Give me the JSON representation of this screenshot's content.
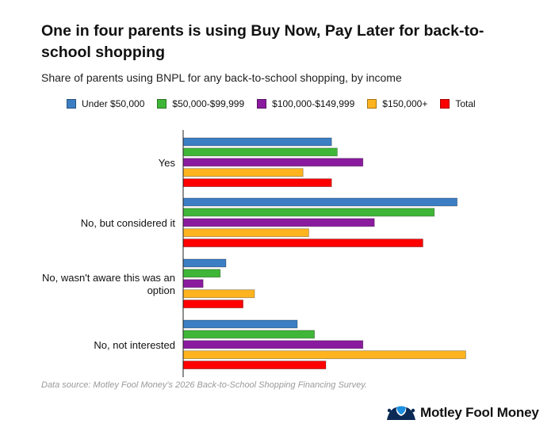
{
  "title": "One in four parents is using Buy Now, Pay Later for back-to-school shopping",
  "subtitle": "Share of parents using BNPL for any back-to-school shopping, by income",
  "source": "Data source: Motley Fool Money's 2026 Back-to-School Shopping Financing Survey.",
  "brand": {
    "name": "Motley Fool Money",
    "logo_icon": "jester-hat-icon",
    "logo_colors": [
      "#0b2a55",
      "#1f8fe0"
    ]
  },
  "chart_data": {
    "type": "bar",
    "orientation": "horizontal",
    "categories": [
      "Yes",
      "No, but considered it",
      "No, wasn't aware this was an option",
      "No, not interested"
    ],
    "category_label_lines": [
      [
        "Yes"
      ],
      [
        "No, but considered it"
      ],
      [
        "No, wasn't aware this was an",
        "option"
      ],
      [
        "No, not interested"
      ]
    ],
    "series": [
      {
        "name": "Under $50,000",
        "color": "#3c7ec3",
        "values": [
          26,
          48,
          7.5,
          20
        ]
      },
      {
        "name": "$50,000-$99,999",
        "color": "#3fb637",
        "values": [
          27,
          44,
          6.5,
          23
        ]
      },
      {
        "name": "$100,000-$149,999",
        "color": "#8a1b9e",
        "values": [
          31.5,
          33.5,
          3.5,
          31.5
        ]
      },
      {
        "name": "$150,000+",
        "color": "#ffb41f",
        "values": [
          21,
          22,
          12.5,
          49.5
        ]
      },
      {
        "name": "Total",
        "color": "#ff0000",
        "values": [
          26,
          42,
          10.5,
          25
        ]
      }
    ],
    "xlim": [
      0,
      50
    ],
    "axis_ticks_shown": false,
    "grid": false,
    "legend_position": "top"
  }
}
